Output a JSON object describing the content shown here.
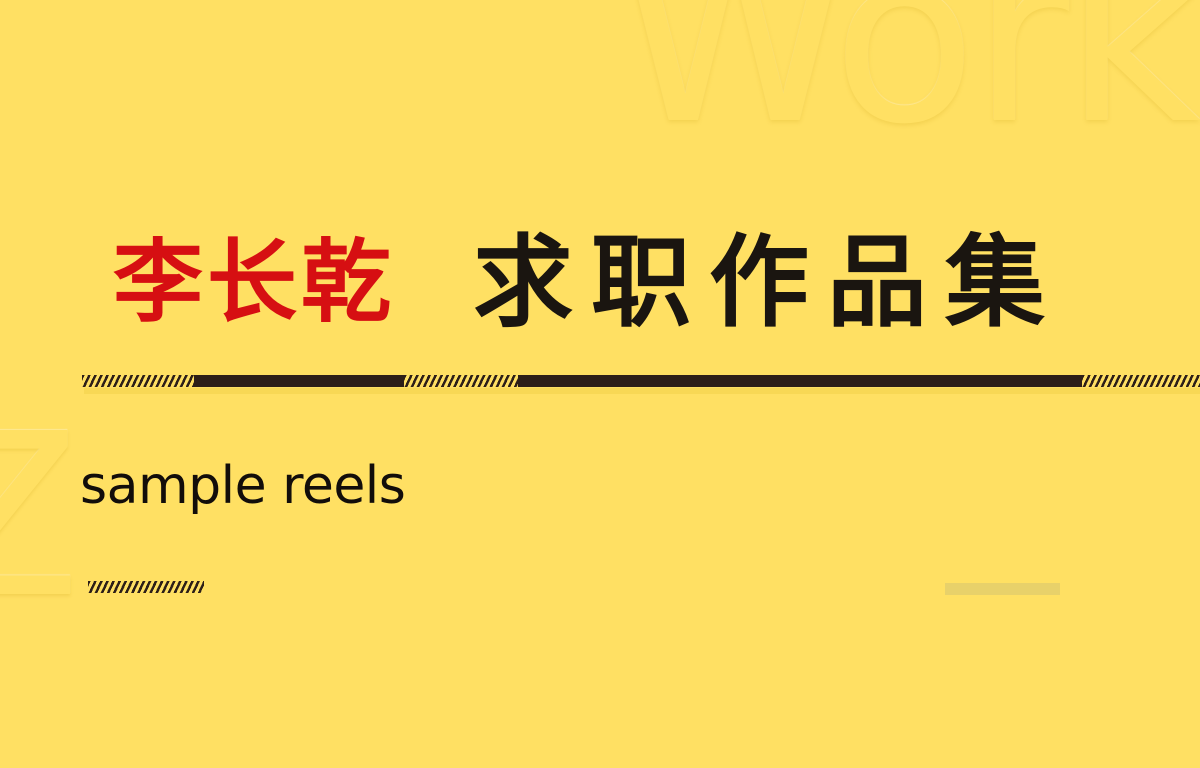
{
  "watermark": {
    "word": "Work",
    "letter": "Z"
  },
  "title": {
    "name": "李长乾",
    "main": "求职作品集"
  },
  "subtitle": "sample reels",
  "colors": {
    "background": "#ffe063",
    "name": "#d60f12",
    "main_title": "#1a1510",
    "divider": "#2d1f18",
    "grey_bar": "#e8d16a"
  }
}
